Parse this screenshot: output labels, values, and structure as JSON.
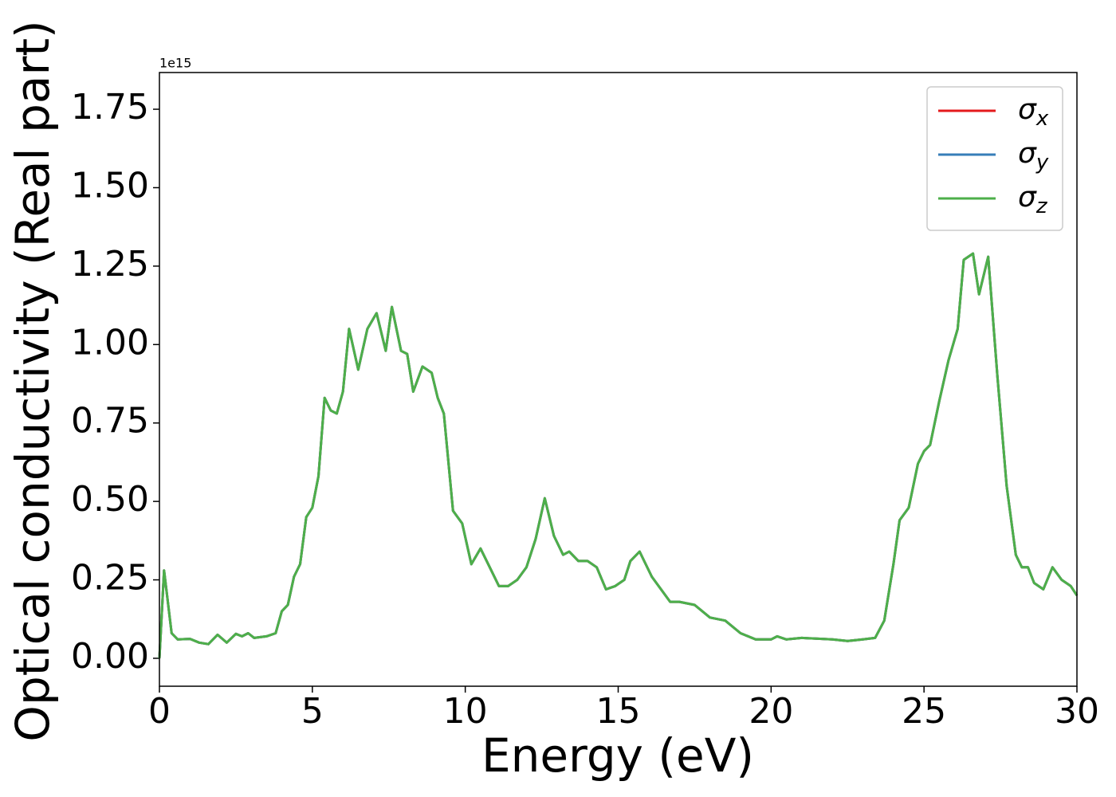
{
  "chart_data": {
    "type": "line",
    "xlabel": "Energy (eV)",
    "ylabel": "Optical conductivity (Real part)",
    "y_offset_text": "1e15",
    "x": [
      0,
      0.15,
      0.4,
      0.6,
      1.0,
      1.3,
      1.6,
      1.9,
      2.2,
      2.5,
      2.7,
      2.9,
      3.1,
      3.5,
      3.8,
      4.0,
      4.2,
      4.4,
      4.6,
      4.8,
      5.0,
      5.2,
      5.4,
      5.6,
      5.8,
      6.0,
      6.2,
      6.5,
      6.8,
      7.1,
      7.4,
      7.6,
      7.9,
      8.1,
      8.3,
      8.6,
      8.9,
      9.1,
      9.3,
      9.6,
      9.9,
      10.2,
      10.5,
      10.8,
      11.1,
      11.4,
      11.7,
      12.0,
      12.3,
      12.6,
      12.9,
      13.2,
      13.4,
      13.7,
      14.0,
      14.3,
      14.6,
      14.9,
      15.2,
      15.4,
      15.7,
      16.1,
      16.4,
      16.7,
      17.0,
      17.5,
      18.0,
      18.5,
      19.0,
      19.5,
      20.0,
      20.2,
      20.5,
      21.0,
      22.0,
      22.5,
      23.0,
      23.4,
      23.7,
      24.0,
      24.2,
      24.5,
      24.8,
      25.0,
      25.2,
      25.5,
      25.8,
      26.1,
      26.3,
      26.6,
      26.8,
      27.1,
      27.4,
      27.7,
      28.0,
      28.2,
      28.4,
      28.6,
      28.9,
      29.2,
      29.5,
      29.8,
      30.0
    ],
    "series": [
      {
        "name": "σx",
        "color": "#e41a1c",
        "values": [
          0.0,
          0.28,
          0.08,
          0.06,
          0.062,
          0.05,
          0.045,
          0.075,
          0.05,
          0.078,
          0.07,
          0.08,
          0.065,
          0.07,
          0.08,
          0.15,
          0.17,
          0.26,
          0.3,
          0.45,
          0.48,
          0.58,
          0.83,
          0.79,
          0.78,
          0.85,
          1.05,
          0.92,
          1.05,
          1.1,
          0.98,
          1.12,
          0.98,
          0.97,
          0.85,
          0.93,
          0.91,
          0.83,
          0.78,
          0.47,
          0.43,
          0.3,
          0.35,
          0.29,
          0.23,
          0.23,
          0.25,
          0.29,
          0.38,
          0.51,
          0.39,
          0.33,
          0.34,
          0.31,
          0.31,
          0.29,
          0.22,
          0.23,
          0.25,
          0.31,
          0.34,
          0.26,
          0.22,
          0.18,
          0.18,
          0.17,
          0.13,
          0.12,
          0.08,
          0.06,
          0.06,
          0.07,
          0.06,
          0.065,
          0.06,
          0.055,
          0.06,
          0.065,
          0.12,
          0.3,
          0.44,
          0.48,
          0.62,
          0.66,
          0.68,
          0.82,
          0.95,
          1.05,
          1.27,
          1.29,
          1.16,
          1.28,
          0.9,
          0.55,
          0.33,
          0.29,
          0.29,
          0.24,
          0.22,
          0.29,
          0.25,
          0.23,
          0.2
        ]
      },
      {
        "name": "σy",
        "color": "#377eb8",
        "values": [
          0.0,
          0.28,
          0.08,
          0.06,
          0.062,
          0.05,
          0.045,
          0.075,
          0.05,
          0.078,
          0.07,
          0.08,
          0.065,
          0.07,
          0.08,
          0.15,
          0.17,
          0.26,
          0.3,
          0.45,
          0.48,
          0.58,
          0.83,
          0.79,
          0.78,
          0.85,
          1.05,
          0.92,
          1.05,
          1.1,
          0.98,
          1.12,
          0.98,
          0.97,
          0.85,
          0.93,
          0.91,
          0.83,
          0.78,
          0.47,
          0.43,
          0.3,
          0.35,
          0.29,
          0.23,
          0.23,
          0.25,
          0.29,
          0.38,
          0.51,
          0.39,
          0.33,
          0.34,
          0.31,
          0.31,
          0.29,
          0.22,
          0.23,
          0.25,
          0.31,
          0.34,
          0.26,
          0.22,
          0.18,
          0.18,
          0.17,
          0.13,
          0.12,
          0.08,
          0.06,
          0.06,
          0.07,
          0.06,
          0.065,
          0.06,
          0.055,
          0.06,
          0.065,
          0.12,
          0.3,
          0.44,
          0.48,
          0.62,
          0.66,
          0.68,
          0.82,
          0.95,
          1.05,
          1.27,
          1.29,
          1.16,
          1.28,
          0.9,
          0.55,
          0.33,
          0.29,
          0.29,
          0.24,
          0.22,
          0.29,
          0.25,
          0.23,
          0.2
        ]
      },
      {
        "name": "σz",
        "color": "#4daf4a",
        "values": [
          0.0,
          0.28,
          0.08,
          0.06,
          0.062,
          0.05,
          0.045,
          0.075,
          0.05,
          0.078,
          0.07,
          0.08,
          0.065,
          0.07,
          0.08,
          0.15,
          0.17,
          0.26,
          0.3,
          0.45,
          0.48,
          0.58,
          0.83,
          0.79,
          0.78,
          0.85,
          1.05,
          0.92,
          1.05,
          1.1,
          0.98,
          1.12,
          0.98,
          0.97,
          0.85,
          0.93,
          0.91,
          0.83,
          0.78,
          0.47,
          0.43,
          0.3,
          0.35,
          0.29,
          0.23,
          0.23,
          0.25,
          0.29,
          0.38,
          0.51,
          0.39,
          0.33,
          0.34,
          0.31,
          0.31,
          0.29,
          0.22,
          0.23,
          0.25,
          0.31,
          0.34,
          0.26,
          0.22,
          0.18,
          0.18,
          0.17,
          0.13,
          0.12,
          0.08,
          0.06,
          0.06,
          0.07,
          0.06,
          0.065,
          0.06,
          0.055,
          0.06,
          0.065,
          0.12,
          0.3,
          0.44,
          0.48,
          0.62,
          0.66,
          0.68,
          0.82,
          0.95,
          1.05,
          1.27,
          1.29,
          1.16,
          1.28,
          0.9,
          0.55,
          0.33,
          0.29,
          0.29,
          0.24,
          0.22,
          0.29,
          0.25,
          0.23,
          0.2
        ]
      }
    ],
    "xlim": [
      0,
      30
    ],
    "xticks": [
      0,
      5,
      10,
      15,
      20,
      25,
      30
    ],
    "ylim": [
      -0.089,
      1.867
    ],
    "yticks": [
      {
        "value": 0,
        "label": "0.00"
      },
      0.25,
      {
        "value": 0.5,
        "label": "0.50"
      },
      0.75,
      {
        "value": 1,
        "label": "1.00"
      },
      1.25,
      {
        "value": 1.5,
        "label": "1.50"
      },
      1.75
    ],
    "legend": "upper right",
    "grid": false
  }
}
